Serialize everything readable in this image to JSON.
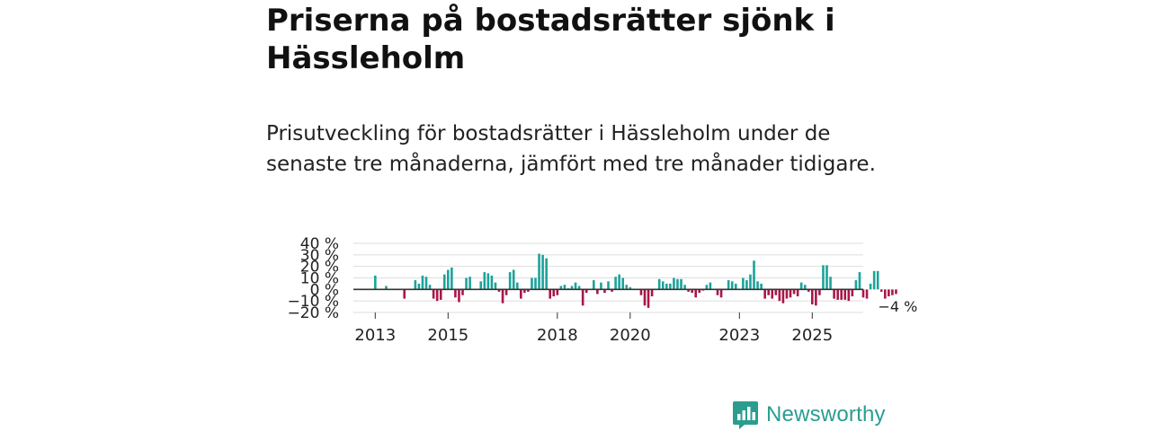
{
  "headline": "Priserna på bostadsrätter sjönk i Hässleholm",
  "subtitle": "Prisutveckling för bostadsrätter i Hässleholm under de senaste tre månaderna, jämfört med tre månader tidigare.",
  "brand": {
    "name": "Newsworthy",
    "icon": "newsworthy-logo-icon",
    "color": "#2a9d90"
  },
  "colors": {
    "positive": "#1ca39a",
    "negative": "#a8174a",
    "grid": "#dddddd",
    "zero_line": "#333333",
    "text": "#222222"
  },
  "chart_data": {
    "type": "bar",
    "title": "",
    "xlabel": "",
    "ylabel": "",
    "ylim": [
      -20,
      40
    ],
    "y_ticks": [
      40,
      30,
      20,
      10,
      0,
      -10,
      -20
    ],
    "y_tick_labels": [
      "40 %",
      "30 %",
      "20 %",
      "10 %",
      "0 %",
      "−10 %",
      "−20 %"
    ],
    "x_ticks": [
      {
        "label": "2013",
        "index": 6
      },
      {
        "label": "2015",
        "index": 26
      },
      {
        "label": "2018",
        "index": 56
      },
      {
        "label": "2020",
        "index": 76
      },
      {
        "label": "2023",
        "index": 106
      },
      {
        "label": "2025",
        "index": 126
      }
    ],
    "x_range": [
      0,
      140
    ],
    "series_start": 6,
    "unit": "%",
    "values": [
      12,
      0,
      0,
      3,
      0,
      0,
      0,
      0,
      -8,
      0,
      0,
      8,
      5,
      12,
      11,
      4,
      -8,
      -10,
      -9,
      13,
      17,
      19,
      -7,
      -11,
      -5,
      10,
      11,
      0,
      0,
      7,
      15,
      14,
      12,
      6,
      -2,
      -12,
      -5,
      15,
      17,
      6,
      -8,
      -3,
      -2,
      10,
      10,
      31,
      30,
      27,
      -8,
      -6,
      -5,
      3,
      4,
      1,
      3,
      6,
      3,
      -14,
      -3,
      0,
      8,
      -4,
      6,
      -3,
      7,
      -2,
      11,
      13,
      10,
      4,
      2,
      0,
      0,
      -5,
      -14,
      -16,
      -6,
      0,
      9,
      7,
      5,
      5,
      10,
      9,
      9,
      4,
      -2,
      -3,
      -7,
      -3,
      -1,
      4,
      6,
      0,
      -5,
      -7,
      0,
      8,
      7,
      5,
      0,
      10,
      8,
      13,
      25,
      7,
      5,
      -8,
      -5,
      -8,
      -5,
      -10,
      -12,
      -8,
      -7,
      -4,
      -6,
      6,
      4,
      -2,
      -13,
      -14,
      -5,
      21,
      21,
      11,
      -8,
      -9,
      -9,
      -9,
      -10,
      -6,
      8,
      15,
      -7,
      -8,
      5,
      16,
      16,
      -2,
      -8,
      -6,
      -5,
      -4
    ],
    "annotation": {
      "label": "−4 %",
      "value": -4
    }
  }
}
